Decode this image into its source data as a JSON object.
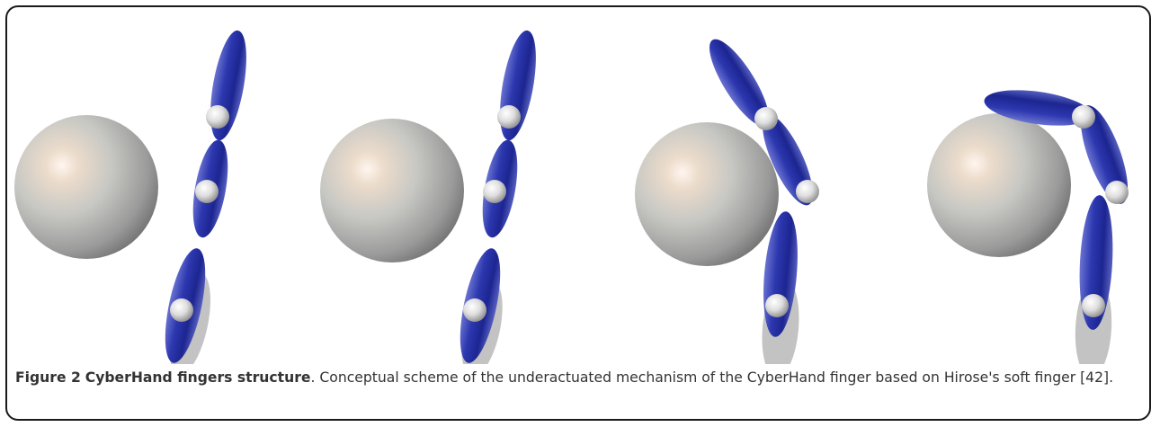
{
  "figure": {
    "label": "Figure 2",
    "title": "CyberHand fingers structure",
    "caption_text": ". Conceptual scheme of the underactuated mechanism of the CyberHand finger based on Hirose's soft finger [42].",
    "panels": [
      "stage-1",
      "stage-2",
      "stage-3",
      "stage-4"
    ],
    "colors": {
      "finger": "#2a35a8",
      "sphere": "#c8c8c8",
      "joint": "#f2f2f2"
    }
  }
}
